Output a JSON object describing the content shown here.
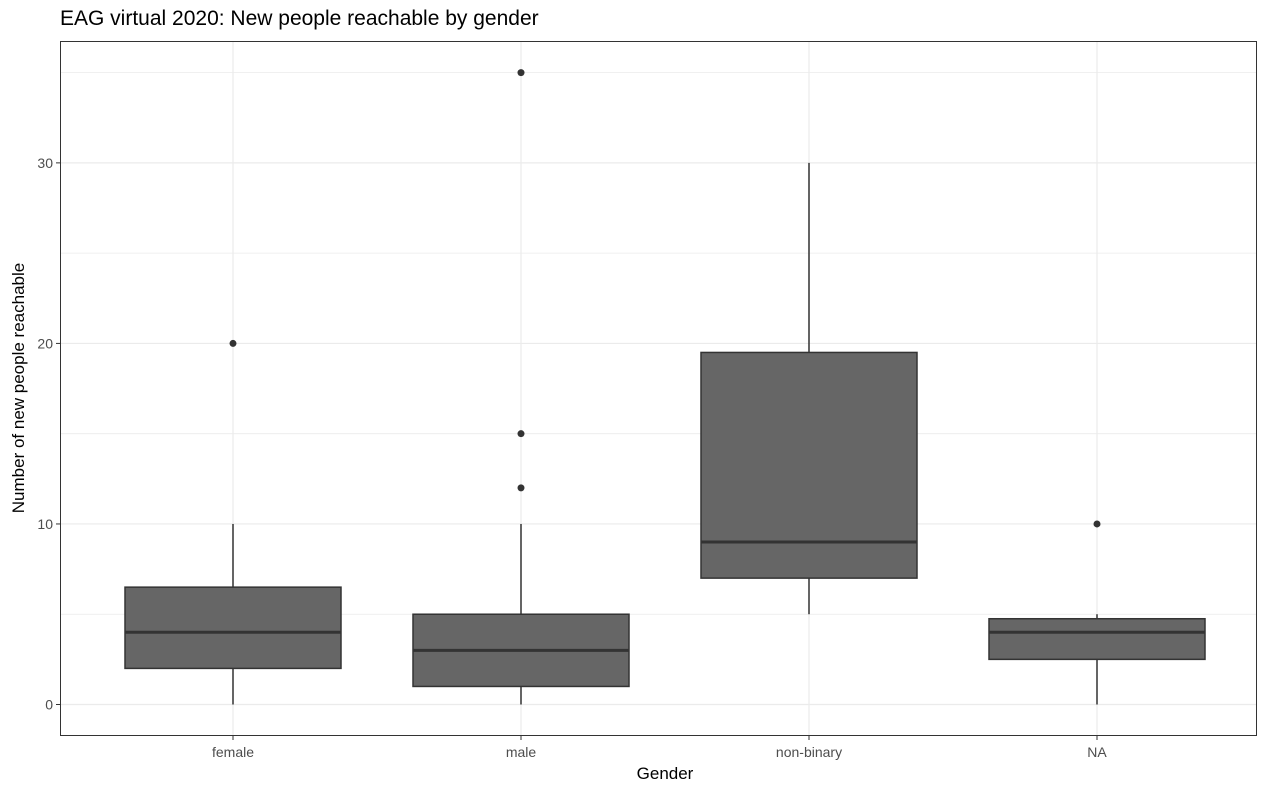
{
  "chart_data": {
    "type": "boxplot",
    "title": "EAG virtual 2020: New people reachable by gender",
    "xlabel": "Gender",
    "ylabel": "Number of new people reachable",
    "ylim": [
      -1.6,
      36.6
    ],
    "yticks": [
      0,
      10,
      20,
      30
    ],
    "grid": true,
    "legend": "none",
    "categories": [
      "female",
      "male",
      "non-binary",
      "NA"
    ],
    "boxes": [
      {
        "category": "female",
        "whisker_low": 0,
        "q1": 2,
        "median": 4,
        "q3": 6.5,
        "whisker_high": 10,
        "outliers": [
          20
        ]
      },
      {
        "category": "male",
        "whisker_low": 0,
        "q1": 1,
        "median": 3,
        "q3": 5,
        "whisker_high": 10,
        "outliers": [
          12,
          15,
          35
        ]
      },
      {
        "category": "non-binary",
        "whisker_low": 5,
        "q1": 7,
        "median": 9,
        "q3": 19.5,
        "whisker_high": 30,
        "outliers": []
      },
      {
        "category": "NA",
        "whisker_low": 0,
        "q1": 2.5,
        "median": 4,
        "q3": 4.75,
        "whisker_high": 5,
        "outliers": [
          10
        ]
      }
    ],
    "colors": {
      "box_fill": "#666666",
      "line": "#333333",
      "grid": "#ebebeb",
      "panel_border": "#333333"
    }
  }
}
